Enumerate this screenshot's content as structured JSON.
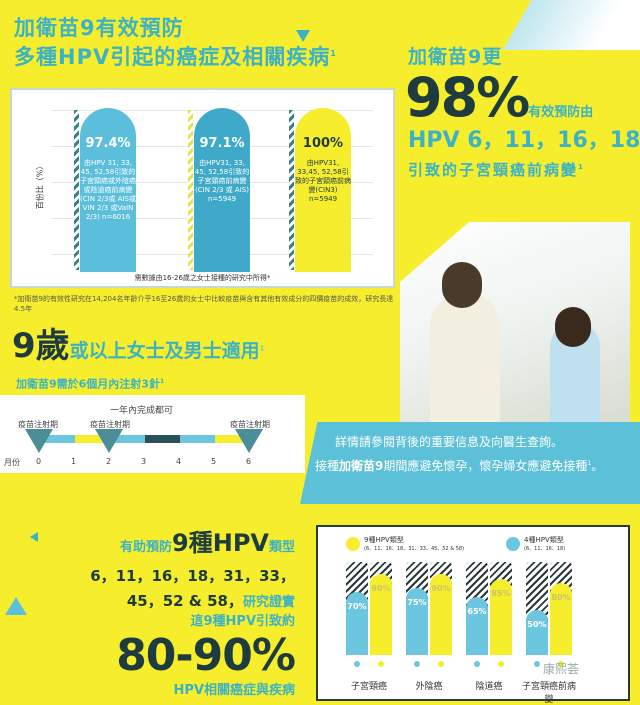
{
  "top": {
    "title1": "加衛苗9有效預防",
    "title2": "多種HPV引起的癌症及相關疾病",
    "sup": "1",
    "yaxis": "百份比（%）",
    "bars": [
      {
        "value": "97.4%",
        "text": "由HPV 31, 33, 45, 52,58引致的子宮頸癌或外陰癌或陰道癌前病變(CIN 2/3或 AIS或VIN 2/3 或VaIN 2/3) n=6016",
        "color": "#5bbfdc"
      },
      {
        "value": "97.1%",
        "text": "由HPV31, 33, 45, 52,58引致的子宮頸癌前病變(CIN 2/3 或 AIS) n=5949",
        "color": "#3fa9c9"
      },
      {
        "value": "100%",
        "text": "由HPV31, 33,45, 52,58引致的子宮頸癌前病變(CIN3) n=5949",
        "color": "#f6ee2c"
      }
    ],
    "caption": "需數據由16-26歲之女士接種的研究中所得*",
    "footnote": "*加衛苗9的有效性研究在14,204名年齡介乎16至26歲的女士中比較疫苗與含有其他有效成分的四價疫苗的成效，研究長達4.5年"
  },
  "right": {
    "line1": "加衛苗9更",
    "big": "98%",
    "after": "有效預防由",
    "hpv": "HPV 6，11，16，18",
    "line3": "引致的子宮頸癌前病變",
    "sup": "1"
  },
  "age": {
    "big1": "9歲",
    "rest": "或以上女士及男士適用",
    "sup": "1",
    "sub": "加衛苗9需於6個月內注射3針",
    "sub_sup": "1"
  },
  "timeline": {
    "header": "一年內完成都可",
    "dose_label": "疫苗注射期",
    "month_label": "月份",
    "months": [
      "0",
      "1",
      "2",
      "3",
      "4",
      "5",
      "6"
    ],
    "doses": [
      0,
      2,
      6
    ]
  },
  "banner": {
    "line1": "詳情請參閱背後的重要信息及向醫生查詢。",
    "line2a": "接種",
    "line2b": "加衛苗9",
    "line2c": "期間應避免懷孕，懷孕婦女應避免接種",
    "sup": "1",
    "end": "。"
  },
  "bottom": {
    "pre": "有助預防",
    "big": "9種HPV",
    "post": "類型",
    "types1": "6，11，16，18，31，33，",
    "types2": "45，52 & 58，",
    "proof": "研究證實",
    "cause": "這9種HPV引致約",
    "range": "80-90%",
    "tail": "HPV相關癌症與疾病"
  },
  "chart_data": {
    "type": "bar",
    "legend": [
      {
        "name": "9種HPV類型",
        "sub": "(6、11、16、18、31、33、45、52 & 58)",
        "color": "#f6ee2c"
      },
      {
        "name": "4種HPV類型",
        "sub": "(6、11、16、18)",
        "color": "#6cc6e0"
      }
    ],
    "categories": [
      "子宮頸癌",
      "外陰癌",
      "陰道癌",
      "子宮頸癌前病變"
    ],
    "series": [
      {
        "name": "4種HPV類型",
        "values": [
          70,
          75,
          65,
          50
        ]
      },
      {
        "name": "9種HPV類型",
        "values": [
          90,
          90,
          85,
          80
        ]
      }
    ],
    "ylim": [
      0,
      100
    ]
  },
  "watermark": "康熙荟"
}
